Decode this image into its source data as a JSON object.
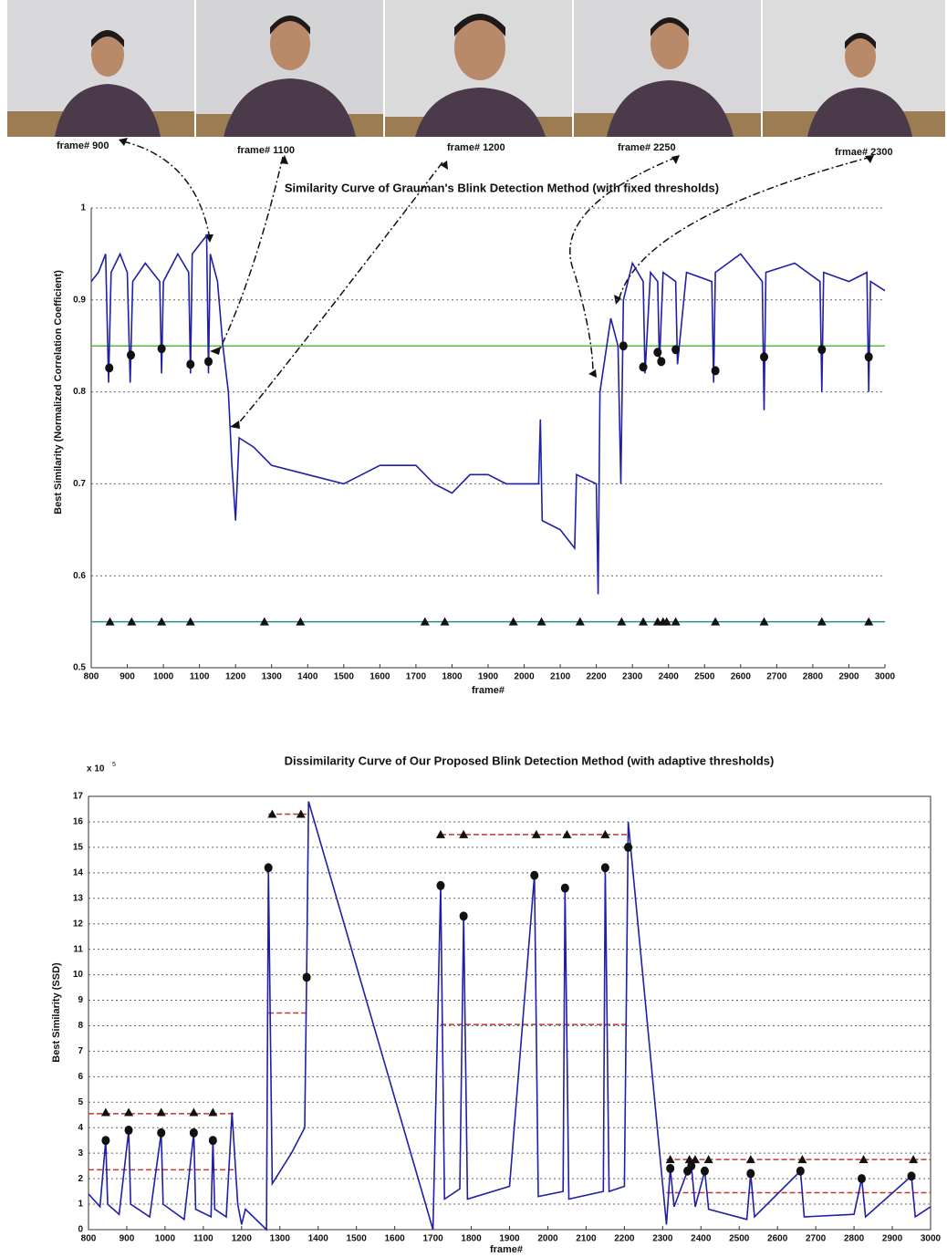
{
  "photo_strip": {
    "labels": [
      "frame# 900",
      "frame# 1100",
      "frame# 1200",
      "frame# 2250",
      "frmae# 2300"
    ]
  },
  "chart_data": [
    {
      "type": "line",
      "title": "Similarity Curve of Grauman's Blink Detection Method  (with fixed thresholds)",
      "x_label": "frame#",
      "y_label": "Best Similarity (Normalized Correlation Coefficient)",
      "xlim": [
        800,
        3000
      ],
      "xticks": [
        800,
        900,
        1000,
        1100,
        1200,
        1300,
        1400,
        1500,
        1600,
        1700,
        1800,
        1900,
        2000,
        2100,
        2200,
        2300,
        2400,
        2500,
        2600,
        2700,
        2800,
        2900,
        3000
      ],
      "ylim": [
        0.5,
        1
      ],
      "yticks": [
        0.5,
        0.6,
        0.7,
        0.8,
        0.9,
        1
      ],
      "grid": "y",
      "series": [
        {
          "color": "#1f1fa8",
          "x": [
            800,
            820,
            840,
            848,
            855,
            880,
            900,
            908,
            915,
            950,
            990,
            995,
            1000,
            1040,
            1070,
            1075,
            1080,
            1100,
            1120,
            1125,
            1130,
            1150,
            1165,
            1180,
            1185,
            1190,
            1200,
            1210,
            1250,
            1300,
            1400,
            1500,
            1600,
            1700,
            1750,
            1800,
            1850,
            1900,
            1950,
            2040,
            2045,
            2050,
            2100,
            2140,
            2145,
            2200,
            2205,
            2210,
            2240,
            2260,
            2268,
            2275,
            2300,
            2330,
            2335,
            2350,
            2370,
            2375,
            2385,
            2420,
            2425,
            2450,
            2520,
            2525,
            2530,
            2600,
            2660,
            2665,
            2670,
            2750,
            2820,
            2825,
            2830,
            2900,
            2950,
            2955,
            2960,
            3000
          ],
          "values": [
            0.92,
            0.93,
            0.95,
            0.81,
            0.93,
            0.95,
            0.93,
            0.81,
            0.92,
            0.94,
            0.92,
            0.82,
            0.92,
            0.95,
            0.93,
            0.82,
            0.95,
            0.96,
            0.97,
            0.82,
            0.95,
            0.92,
            0.85,
            0.8,
            0.76,
            0.72,
            0.66,
            0.75,
            0.74,
            0.72,
            0.71,
            0.7,
            0.72,
            0.72,
            0.7,
            0.69,
            0.71,
            0.71,
            0.7,
            0.7,
            0.77,
            0.66,
            0.65,
            0.63,
            0.71,
            0.7,
            0.58,
            0.8,
            0.88,
            0.85,
            0.7,
            0.9,
            0.94,
            0.92,
            0.82,
            0.93,
            0.92,
            0.83,
            0.93,
            0.92,
            0.83,
            0.93,
            0.92,
            0.81,
            0.93,
            0.95,
            0.92,
            0.78,
            0.93,
            0.94,
            0.92,
            0.8,
            0.93,
            0.92,
            0.93,
            0.8,
            0.92,
            0.91
          ]
        },
        {
          "marker": "circle",
          "color": "#111",
          "x": [
            850,
            910,
            995,
            1075,
            1125,
            2275,
            2330,
            2370,
            2380,
            2420,
            2530,
            2665,
            2825,
            2955
          ],
          "values": [
            0.826,
            0.84,
            0.847,
            0.83,
            0.833,
            0.85,
            0.827,
            0.843,
            0.833,
            0.846,
            0.823,
            0.838,
            0.846,
            0.838
          ]
        },
        {
          "marker": "triangle",
          "color": "#111",
          "x": [
            852,
            912,
            995,
            1075,
            1280,
            1380,
            1725,
            1780,
            1970,
            2048,
            2155,
            2270,
            2330,
            2370,
            2385,
            2395,
            2420,
            2530,
            2665,
            2825,
            2955
          ],
          "values": [
            0.55,
            0.55,
            0.55,
            0.55,
            0.55,
            0.55,
            0.55,
            0.55,
            0.55,
            0.55,
            0.55,
            0.55,
            0.55,
            0.55,
            0.55,
            0.55,
            0.55,
            0.55,
            0.55,
            0.55,
            0.55
          ]
        }
      ],
      "hlines": [
        {
          "y": 0.85,
          "color": "#5cb83c"
        },
        {
          "y": 0.55,
          "color": "#2e8b8b"
        }
      ]
    },
    {
      "type": "line",
      "title": "Dissimilarity Curve of Our Proposed Blink Detection Method  (with adaptive thresholds)",
      "x_label": "frame#",
      "y_label": "Best Similarity (SSD)",
      "y_multiplier": {
        "base": "x 10",
        "exponent": "5"
      },
      "xlim": [
        800,
        3000
      ],
      "xticks": [
        800,
        900,
        1000,
        1100,
        1200,
        1300,
        1400,
        1500,
        1600,
        1700,
        1800,
        1900,
        2000,
        2100,
        2200,
        2300,
        2400,
        2500,
        2600,
        2700,
        2800,
        2900,
        3000
      ],
      "ylim": [
        0,
        17
      ],
      "yticks": [
        0,
        1,
        2,
        3,
        4,
        5,
        6,
        7,
        8,
        9,
        10,
        11,
        12,
        13,
        14,
        15,
        16,
        17
      ],
      "grid": "y",
      "series": [
        {
          "color": "#1f1fa8",
          "x": [
            800,
            830,
            845,
            850,
            880,
            905,
            910,
            960,
            990,
            995,
            1050,
            1075,
            1080,
            1120,
            1125,
            1130,
            1160,
            1175,
            1190,
            1200,
            1210,
            1265,
            1270,
            1280,
            1330,
            1365,
            1370,
            1375,
            1700,
            1720,
            1730,
            1770,
            1780,
            1790,
            1900,
            1965,
            1975,
            2040,
            2045,
            2055,
            2145,
            2150,
            2160,
            2200,
            2210,
            2310,
            2320,
            2330,
            2365,
            2375,
            2385,
            2410,
            2420,
            2520,
            2530,
            2540,
            2660,
            2670,
            2800,
            2820,
            2830,
            2950,
            2960,
            3000
          ],
          "values": [
            1.4,
            0.9,
            3.5,
            1,
            0.6,
            3.9,
            1,
            0.5,
            3.8,
            1,
            0.4,
            3.8,
            0.8,
            0.5,
            3.5,
            0.8,
            0.5,
            4.6,
            1,
            0.2,
            0.8,
            0,
            14.2,
            1.8,
            3,
            4,
            10,
            16.8,
            0,
            13.5,
            1.2,
            1.6,
            12.3,
            1.2,
            1.7,
            13.9,
            1.3,
            1.5,
            13.4,
            1.2,
            1.5,
            14.2,
            1.5,
            1.7,
            16,
            0.2,
            2.4,
            0.9,
            2.3,
            2.5,
            0.9,
            2.3,
            0.8,
            0.4,
            2.2,
            0.5,
            2.3,
            0.5,
            0.6,
            2,
            0.5,
            2.1,
            0.5,
            0.9
          ]
        },
        {
          "marker": "circle",
          "color": "#111",
          "x": [
            845,
            905,
            990,
            1075,
            1125,
            1270,
            1370,
            1720,
            1780,
            1965,
            2045,
            2150,
            2210,
            2320,
            2365,
            2375,
            2410,
            2530,
            2660,
            2820,
            2950
          ],
          "values": [
            3.5,
            3.9,
            3.8,
            3.8,
            3.5,
            14.2,
            9.9,
            13.5,
            12.3,
            13.9,
            13.4,
            14.2,
            15,
            2.4,
            2.3,
            2.5,
            2.3,
            2.2,
            2.3,
            2,
            2.1
          ]
        },
        {
          "marker": "triangle",
          "color": "#111",
          "x": [
            845,
            905,
            990,
            1075,
            1125,
            1280,
            1355,
            1720,
            1780,
            1970,
            2050,
            2150,
            2320,
            2370,
            2385,
            2420,
            2530,
            2665,
            2825,
            2955
          ],
          "values": [
            4.6,
            4.6,
            4.6,
            4.6,
            4.6,
            16.3,
            16.3,
            15.5,
            15.5,
            15.5,
            15.5,
            15.5,
            2.75,
            2.75,
            2.75,
            2.75,
            2.75,
            2.75,
            2.75,
            2.75
          ]
        }
      ],
      "segments": [
        {
          "x": [
            800,
            1180
          ],
          "y": 4.55,
          "color": "#c0392b"
        },
        {
          "x": [
            800,
            1180
          ],
          "y": 2.35,
          "color": "#c0392b"
        },
        {
          "x": [
            1270,
            1370
          ],
          "y": 16.3,
          "color": "#c0392b"
        },
        {
          "x": [
            1270,
            1370
          ],
          "y": 8.5,
          "color": "#c0392b"
        },
        {
          "x": [
            1720,
            2210
          ],
          "y": 15.5,
          "color": "#c0392b"
        },
        {
          "x": [
            1720,
            2210
          ],
          "y": 8.05,
          "color": "#c0392b"
        },
        {
          "x": [
            2310,
            3000
          ],
          "y": 2.75,
          "color": "#c0392b"
        },
        {
          "x": [
            2310,
            3000
          ],
          "y": 1.45,
          "color": "#c0392b"
        }
      ]
    }
  ]
}
